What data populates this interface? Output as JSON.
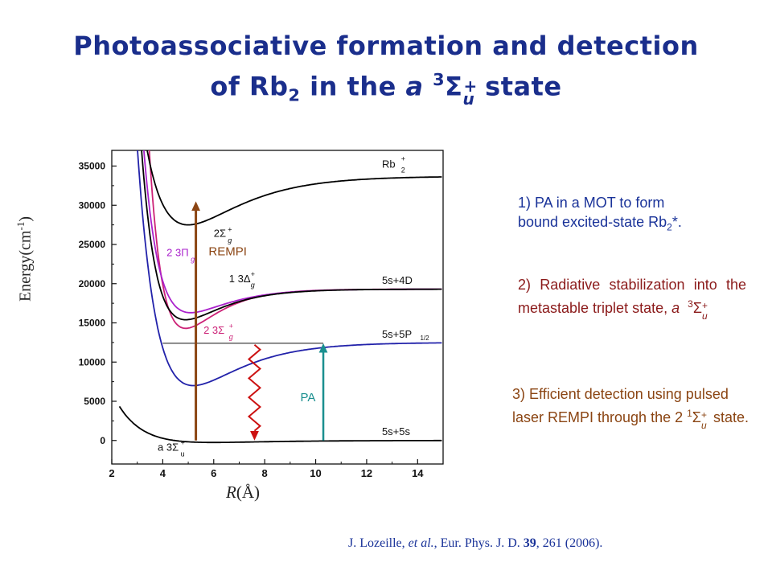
{
  "title": {
    "line1": "Photoassociative formation and detection",
    "line2_prefix": "of Rb",
    "line2_sub": "2",
    "line2_mid": " in the ",
    "line2_italic": "a",
    "line2_sup3": "3",
    "line2_sigma": "Σ",
    "line2_plus": "+",
    "line2_u": "u",
    "line2_suffix": " state"
  },
  "notes": {
    "n1_line1": "1) PA in a MOT to form",
    "n1_line2": "bound excited-state Rb",
    "n1_sub": "2",
    "n1_end": "*.",
    "n2_text": "2) Radiative stabilization into the metastable triplet state, ",
    "n2_a": "a",
    "n2_sup": "3",
    "n2_sigma": "Σ",
    "n2_plus": "+",
    "n2_u": "u",
    "n3_text": "3) Efficient detection using pulsed laser REMPI through the 2 ",
    "n3_sup": "1",
    "n3_sigma": "Σ",
    "n3_plus": "+",
    "n3_u": "u",
    "n3_end": " state."
  },
  "reference": {
    "authors": "J. Lozeille, ",
    "etal": "et al.",
    "journal": ", Eur. Phys. J. D. ",
    "volume": "39",
    "rest": ", 261 (2006)."
  },
  "axes": {
    "ylabel": "Energy(cm",
    "ylabel_sup": "-1",
    "ylabel_end": ")",
    "xlabel_italic": "R",
    "xlabel_rest": "(Å)",
    "x_ticks": [
      "2",
      "4",
      "6",
      "8",
      "10",
      "12",
      "14"
    ],
    "y_ticks": [
      "0",
      "5000",
      "10000",
      "15000",
      "20000",
      "25000",
      "30000",
      "35000"
    ]
  },
  "chart_data": {
    "type": "line",
    "xlim": [
      2,
      15
    ],
    "ylim": [
      -3000,
      37000
    ],
    "series": [
      {
        "name": "a 3Σu+",
        "color": "#000000",
        "De": 250,
        "Re": 6.0,
        "asym": 0,
        "a": 0.45
      },
      {
        "name": "5s+5P1/2 blue",
        "color": "#2222aa",
        "De": 5500,
        "Re": 5.2,
        "asym": 12500,
        "a": 0.55
      },
      {
        "name": "2 3Σg+",
        "color": "#cc2277",
        "De": 5000,
        "Re": 4.9,
        "asym": 19300,
        "a": 0.8
      },
      {
        "name": "2 3Πg",
        "color": "#aa22cc",
        "De": 3000,
        "Re": 5.1,
        "asym": 19300,
        "a": 0.7
      },
      {
        "name": "1 3Δg+",
        "color": "#000000",
        "De": 3900,
        "Re": 4.9,
        "asym": 19300,
        "a": 0.7
      },
      {
        "name": "Rb2+ 2Σg+",
        "color": "#000000",
        "De": 6200,
        "Re": 5.0,
        "asym": 33700,
        "a": 0.5
      }
    ],
    "asymptote_labels": [
      "Rb",
      "5s+4D",
      "5s+5P",
      "5s+5s"
    ],
    "state_labels": {
      "ion": "2Σ",
      "pi": "2 3Π",
      "delta": "1 3Δ",
      "sigma_g": "2 3Σ",
      "a_state": "a 3Σ"
    },
    "arrows": {
      "remi_label": "REMPI",
      "pa_label": "PA",
      "pa_x": 10.3,
      "pa_y0": 0,
      "pa_y1": 12400,
      "remi_x": 5.3,
      "remi_y0": 0,
      "remi_y1": 30500,
      "spont_x": 7.6,
      "spont_y0": 12200,
      "spont_y1": 0
    },
    "pa_level": 12400,
    "colors": {
      "remi": "#8b4513",
      "pa": "#1a8f8f",
      "spont": "#cc1111"
    }
  }
}
